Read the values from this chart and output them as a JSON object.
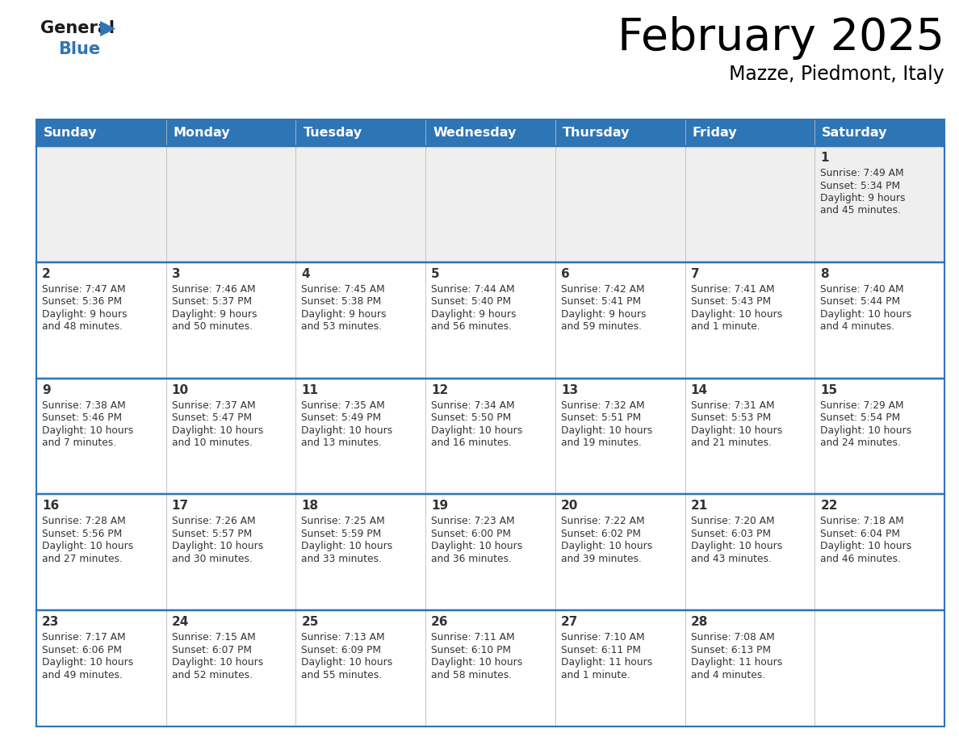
{
  "title": "February 2025",
  "subtitle": "Mazze, Piedmont, Italy",
  "header_color": "#2e75b6",
  "header_text_color": "#ffffff",
  "cell_bg_week1": "#efefef",
  "cell_bg_normal": "#ffffff",
  "line_color": "#2e75b6",
  "text_color": "#333333",
  "days_of_week": [
    "Sunday",
    "Monday",
    "Tuesday",
    "Wednesday",
    "Thursday",
    "Friday",
    "Saturday"
  ],
  "calendar_data": [
    [
      null,
      null,
      null,
      null,
      null,
      null,
      {
        "day": "1",
        "sunrise": "7:49 AM",
        "sunset": "5:34 PM",
        "daylight": "9 hours\nand 45 minutes."
      }
    ],
    [
      {
        "day": "2",
        "sunrise": "7:47 AM",
        "sunset": "5:36 PM",
        "daylight": "9 hours\nand 48 minutes."
      },
      {
        "day": "3",
        "sunrise": "7:46 AM",
        "sunset": "5:37 PM",
        "daylight": "9 hours\nand 50 minutes."
      },
      {
        "day": "4",
        "sunrise": "7:45 AM",
        "sunset": "5:38 PM",
        "daylight": "9 hours\nand 53 minutes."
      },
      {
        "day": "5",
        "sunrise": "7:44 AM",
        "sunset": "5:40 PM",
        "daylight": "9 hours\nand 56 minutes."
      },
      {
        "day": "6",
        "sunrise": "7:42 AM",
        "sunset": "5:41 PM",
        "daylight": "9 hours\nand 59 minutes."
      },
      {
        "day": "7",
        "sunrise": "7:41 AM",
        "sunset": "5:43 PM",
        "daylight": "10 hours\nand 1 minute."
      },
      {
        "day": "8",
        "sunrise": "7:40 AM",
        "sunset": "5:44 PM",
        "daylight": "10 hours\nand 4 minutes."
      }
    ],
    [
      {
        "day": "9",
        "sunrise": "7:38 AM",
        "sunset": "5:46 PM",
        "daylight": "10 hours\nand 7 minutes."
      },
      {
        "day": "10",
        "sunrise": "7:37 AM",
        "sunset": "5:47 PM",
        "daylight": "10 hours\nand 10 minutes."
      },
      {
        "day": "11",
        "sunrise": "7:35 AM",
        "sunset": "5:49 PM",
        "daylight": "10 hours\nand 13 minutes."
      },
      {
        "day": "12",
        "sunrise": "7:34 AM",
        "sunset": "5:50 PM",
        "daylight": "10 hours\nand 16 minutes."
      },
      {
        "day": "13",
        "sunrise": "7:32 AM",
        "sunset": "5:51 PM",
        "daylight": "10 hours\nand 19 minutes."
      },
      {
        "day": "14",
        "sunrise": "7:31 AM",
        "sunset": "5:53 PM",
        "daylight": "10 hours\nand 21 minutes."
      },
      {
        "day": "15",
        "sunrise": "7:29 AM",
        "sunset": "5:54 PM",
        "daylight": "10 hours\nand 24 minutes."
      }
    ],
    [
      {
        "day": "16",
        "sunrise": "7:28 AM",
        "sunset": "5:56 PM",
        "daylight": "10 hours\nand 27 minutes."
      },
      {
        "day": "17",
        "sunrise": "7:26 AM",
        "sunset": "5:57 PM",
        "daylight": "10 hours\nand 30 minutes."
      },
      {
        "day": "18",
        "sunrise": "7:25 AM",
        "sunset": "5:59 PM",
        "daylight": "10 hours\nand 33 minutes."
      },
      {
        "day": "19",
        "sunrise": "7:23 AM",
        "sunset": "6:00 PM",
        "daylight": "10 hours\nand 36 minutes."
      },
      {
        "day": "20",
        "sunrise": "7:22 AM",
        "sunset": "6:02 PM",
        "daylight": "10 hours\nand 39 minutes."
      },
      {
        "day": "21",
        "sunrise": "7:20 AM",
        "sunset": "6:03 PM",
        "daylight": "10 hours\nand 43 minutes."
      },
      {
        "day": "22",
        "sunrise": "7:18 AM",
        "sunset": "6:04 PM",
        "daylight": "10 hours\nand 46 minutes."
      }
    ],
    [
      {
        "day": "23",
        "sunrise": "7:17 AM",
        "sunset": "6:06 PM",
        "daylight": "10 hours\nand 49 minutes."
      },
      {
        "day": "24",
        "sunrise": "7:15 AM",
        "sunset": "6:07 PM",
        "daylight": "10 hours\nand 52 minutes."
      },
      {
        "day": "25",
        "sunrise": "7:13 AM",
        "sunset": "6:09 PM",
        "daylight": "10 hours\nand 55 minutes."
      },
      {
        "day": "26",
        "sunrise": "7:11 AM",
        "sunset": "6:10 PM",
        "daylight": "10 hours\nand 58 minutes."
      },
      {
        "day": "27",
        "sunrise": "7:10 AM",
        "sunset": "6:11 PM",
        "daylight": "11 hours\nand 1 minute."
      },
      {
        "day": "28",
        "sunrise": "7:08 AM",
        "sunset": "6:13 PM",
        "daylight": "11 hours\nand 4 minutes."
      },
      null
    ]
  ]
}
